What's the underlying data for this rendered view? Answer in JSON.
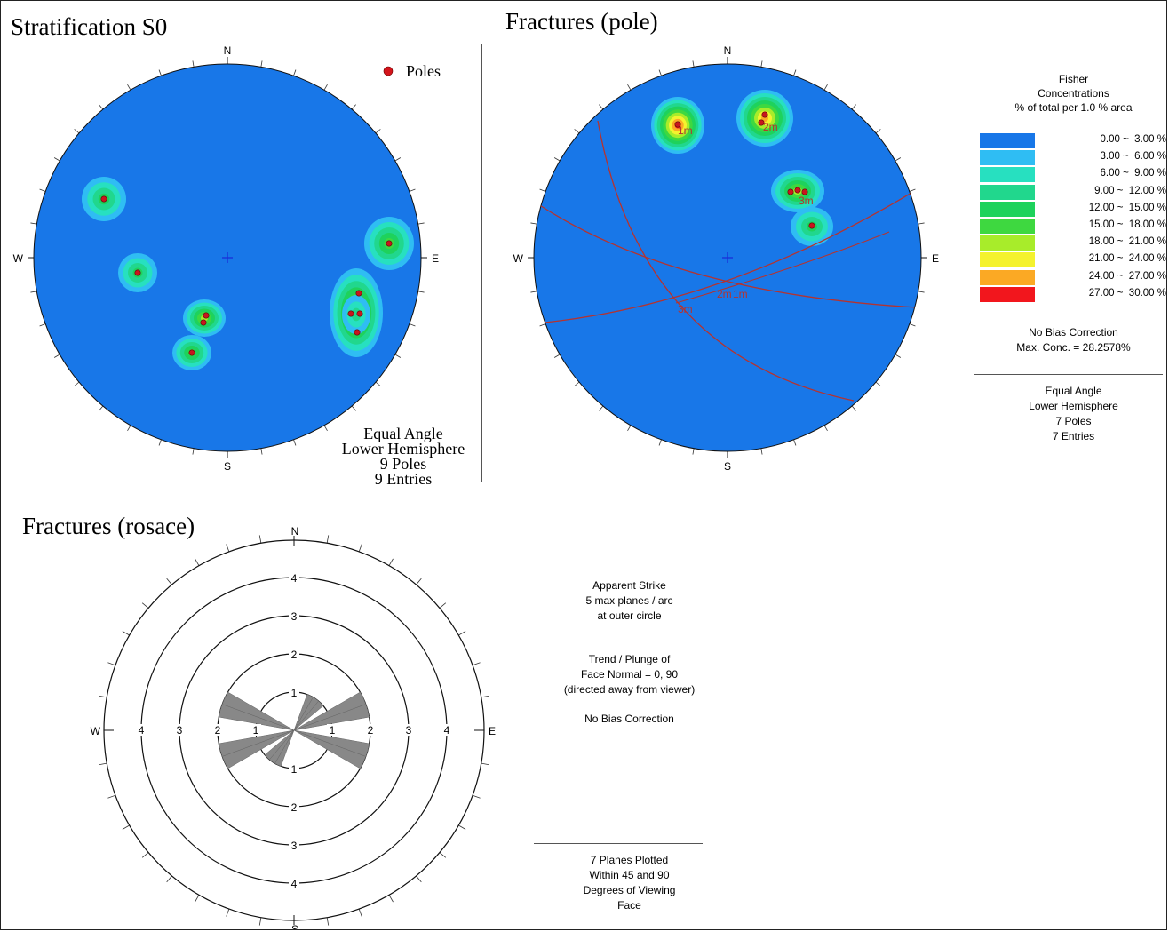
{
  "panels": {
    "stratification": {
      "title": "Stratification S0",
      "legend_label": "Poles",
      "directions": {
        "n": "N",
        "s": "S",
        "e": "E",
        "w": "W"
      },
      "info_lines": [
        "Equal Angle",
        "Lower Hemisphere",
        "9 Poles",
        "9 Entries"
      ]
    },
    "fracture_poles": {
      "title": "Fractures (pole)",
      "directions": {
        "n": "N",
        "s": "S",
        "e": "E",
        "w": "W"
      },
      "set_labels": [
        "1m",
        "2m",
        "3m",
        "2m",
        "1m",
        "3m"
      ],
      "legend": {
        "title_lines": [
          "Fisher",
          "Concentrations",
          "% of total per 1.0 % area"
        ],
        "classes": [
          {
            "label": "0.00 ~  3.00 %",
            "color": "#1877e8"
          },
          {
            "label": "3.00 ~  6.00 %",
            "color": "#2fbdf3"
          },
          {
            "label": "6.00 ~  9.00 %",
            "color": "#27e0c0"
          },
          {
            "label": "9.00 ~  12.00 %",
            "color": "#21d78d"
          },
          {
            "label": "12.00 ~  15.00 %",
            "color": "#1ed25c"
          },
          {
            "label": "15.00 ~  18.00 %",
            "color": "#3ed840"
          },
          {
            "label": "18.00 ~  21.00 %",
            "color": "#a8ec2a"
          },
          {
            "label": "21.00 ~  24.00 %",
            "color": "#f4f22e"
          },
          {
            "label": "24.00 ~  27.00 %",
            "color": "#fba924"
          },
          {
            "label": "27.00 ~  30.00 %",
            "color": "#f2161d"
          }
        ],
        "bias_note": "No Bias Correction",
        "max_conc": "Max. Conc. = 28.2578%",
        "info_lines": [
          "Equal Angle",
          "Lower Hemisphere",
          "7 Poles",
          "7 Entries"
        ]
      }
    },
    "rosace": {
      "title": "Fractures (rosace)",
      "directions": {
        "n": "N",
        "s": "S",
        "e": "E",
        "w": "W"
      },
      "ring_labels": [
        "1",
        "2",
        "3",
        "4"
      ],
      "notes": {
        "strike_lines": [
          "Apparent Strike",
          "5 max planes / arc",
          "at outer circle"
        ],
        "trend_lines": [
          "Trend / Plunge of",
          "Face Normal =   0, 90",
          "(directed away from viewer)"
        ],
        "bias_note": "No Bias Correction",
        "summary_lines": [
          "7 Planes Plotted",
          "Within 45 and 90",
          "Degrees of Viewing",
          "Face"
        ]
      },
      "petals": [
        {
          "strike_deg": 75,
          "value": 2.0
        },
        {
          "strike_deg": 105,
          "value": 2.0
        },
        {
          "strike_deg": 65,
          "value": 2.0
        },
        {
          "strike_deg": 115,
          "value": 2.0
        },
        {
          "strike_deg": 25,
          "value": 1.0
        },
        {
          "strike_deg": 35,
          "value": 1.0
        },
        {
          "strike_deg": 45,
          "value": 1.0
        }
      ]
    }
  },
  "colors": {
    "net_fill": "#1877e8",
    "pole_marker": "#c8161d",
    "great_circle": "#b5332f",
    "center_cross": "#1a2fd8",
    "petal_fill": "#888888"
  }
}
